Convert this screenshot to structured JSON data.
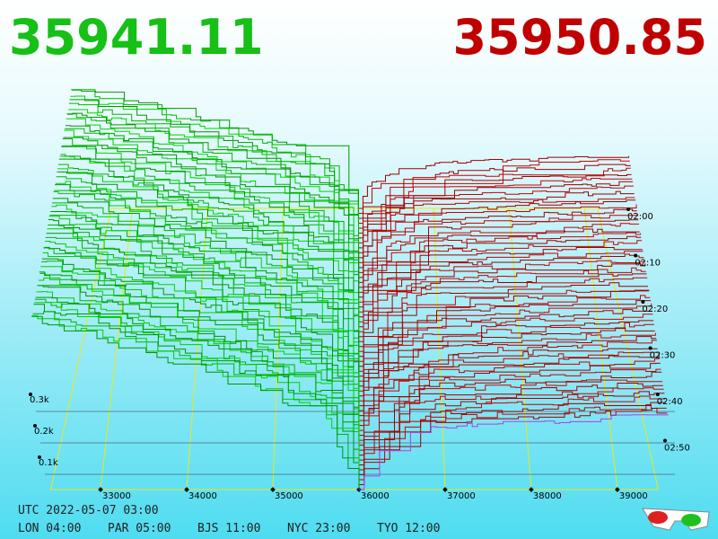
{
  "bid_price": "35941.11",
  "ask_price": "35950.85",
  "price_ticks": [
    "33000",
    "34000",
    "35000",
    "36000",
    "37000",
    "38000",
    "39000"
  ],
  "depth_ticks": [
    "0.3k",
    "0.2k",
    "0.1k"
  ],
  "time_ticks": [
    "02:00",
    "02:10",
    "02:20",
    "02:30",
    "02:40",
    "02:50"
  ],
  "utc_time": "UTC 2022-05-07 03:00",
  "city_times": [
    "LON 04:00",
    "PAR 05:00",
    "BJS 11:00",
    "NYC 23:00",
    "TYO 12:00"
  ]
}
